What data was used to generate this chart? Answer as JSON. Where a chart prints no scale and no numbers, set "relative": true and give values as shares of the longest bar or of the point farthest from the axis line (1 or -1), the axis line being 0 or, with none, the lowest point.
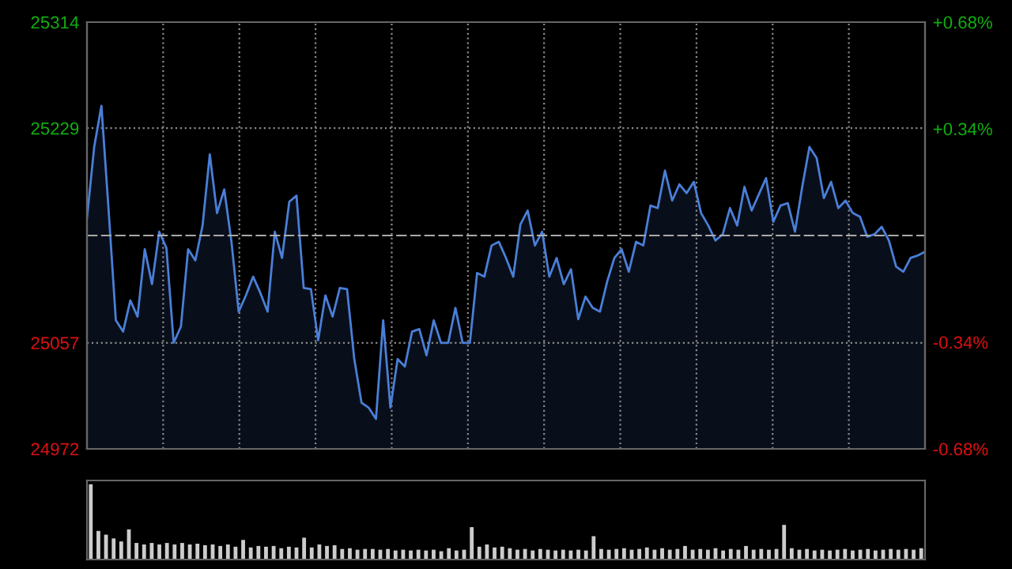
{
  "chart_data": [
    {
      "type": "area",
      "categories": [
        null,
        null,
        null,
        null,
        null,
        null,
        null,
        null,
        null,
        null,
        null,
        null,
        null,
        null,
        null,
        null,
        null,
        null,
        null,
        null,
        null,
        null,
        null,
        null,
        null,
        null,
        null,
        null,
        null,
        null,
        null,
        null,
        null,
        null,
        null,
        null,
        null,
        null,
        null,
        null,
        null,
        null,
        null,
        null,
        null,
        null,
        null,
        null,
        null,
        null,
        null,
        null,
        null,
        null,
        null,
        null,
        null,
        null,
        null,
        null,
        null,
        null,
        null,
        null,
        null,
        null,
        null,
        null,
        null,
        null,
        null,
        null,
        null,
        null,
        null,
        null,
        null,
        null,
        null,
        null,
        null,
        null,
        null,
        null,
        null,
        null,
        null,
        null,
        null,
        null,
        null,
        null,
        null,
        null,
        null,
        null,
        null,
        null,
        null,
        null,
        null,
        null,
        null,
        null,
        null,
        null,
        null,
        null,
        null,
        null,
        null,
        null,
        null,
        null,
        null,
        null,
        null
      ],
      "series": [
        {
          "color": "#4a7fd8",
          "values": [
            25157,
            25214,
            25247,
            25163,
            25075,
            25066,
            25091,
            25078,
            25132,
            25104,
            25146,
            25133,
            25057,
            25070,
            25132,
            25123,
            25151,
            25208,
            25161,
            25180,
            25138,
            25082,
            25095,
            25110,
            25097,
            25082,
            25146,
            25125,
            25170,
            25175,
            25101,
            25100,
            25059,
            25095,
            25078,
            25101,
            25100,
            25044,
            25009,
            25005,
            24996,
            25075,
            25005,
            25044,
            25038,
            25066,
            25068,
            25047,
            25075,
            25057,
            25057,
            25085,
            25057,
            25057,
            25113,
            25110,
            25135,
            25138,
            25125,
            25110,
            25152,
            25163,
            25135,
            25146,
            25110,
            25125,
            25104,
            25116,
            25076,
            25094,
            25085,
            25082,
            25106,
            25125,
            25132,
            25114,
            25138,
            25135,
            25167,
            25165,
            25195,
            25171,
            25184,
            25177,
            25186,
            25161,
            25151,
            25139,
            25144,
            25165,
            25151,
            25182,
            25163,
            25176,
            25189,
            25154,
            25167,
            25169,
            25146,
            25182,
            25214,
            25205,
            25173,
            25186,
            25165,
            25171,
            25161,
            25158,
            25142,
            25144,
            25150,
            25139,
            25118,
            25114,
            25125,
            25127,
            25130
          ]
        }
      ],
      "ylim": [
        24972,
        25314
      ],
      "yticks": [
        24972,
        25057,
        25229,
        25314
      ],
      "y2lim": [
        -0.68,
        0.68
      ],
      "y2ticks": [
        {
          "value": -0.68,
          "label": "-0.68%"
        },
        {
          "value": -0.34,
          "label": "-0.34%"
        },
        {
          "value": 0.34,
          "label": "+0.34%"
        },
        {
          "value": 0.68,
          "label": "+0.68%"
        }
      ],
      "ref_lines": [
        {
          "axis": "y",
          "value": 25143,
          "color": "#aaaaaa",
          "line_style": "dashed"
        }
      ],
      "grid": true,
      "tick_labels": "y"
    },
    {
      "type": "bar",
      "relative": true,
      "tick_labels": false,
      "categories": [
        null,
        null,
        null,
        null,
        null,
        null,
        null,
        null,
        null,
        null,
        null,
        null,
        null,
        null,
        null,
        null,
        null,
        null,
        null,
        null,
        null,
        null,
        null,
        null,
        null,
        null,
        null,
        null,
        null,
        null,
        null,
        null,
        null,
        null,
        null,
        null,
        null,
        null,
        null,
        null,
        null,
        null,
        null,
        null,
        null,
        null,
        null,
        null,
        null,
        null,
        null,
        null,
        null,
        null,
        null,
        null,
        null,
        null,
        null,
        null,
        null,
        null,
        null,
        null,
        null,
        null,
        null,
        null,
        null,
        null,
        null,
        null,
        null,
        null,
        null,
        null,
        null,
        null,
        null,
        null,
        null,
        null,
        null,
        null,
        null,
        null,
        null,
        null,
        null,
        null,
        null,
        null,
        null,
        null,
        null,
        null,
        null,
        null,
        null,
        null,
        null,
        null,
        null,
        null,
        null,
        null,
        null,
        null,
        null,
        null
      ],
      "series": [
        {
          "color": "#cccccc",
          "values": [
            1.0,
            0.38,
            0.33,
            0.28,
            0.24,
            0.4,
            0.22,
            0.2,
            0.22,
            0.2,
            0.22,
            0.2,
            0.22,
            0.2,
            0.21,
            0.19,
            0.2,
            0.18,
            0.2,
            0.17,
            0.26,
            0.16,
            0.18,
            0.17,
            0.18,
            0.15,
            0.17,
            0.16,
            0.29,
            0.16,
            0.2,
            0.18,
            0.19,
            0.14,
            0.15,
            0.13,
            0.14,
            0.14,
            0.13,
            0.14,
            0.12,
            0.13,
            0.12,
            0.13,
            0.12,
            0.13,
            0.11,
            0.15,
            0.12,
            0.13,
            0.43,
            0.17,
            0.2,
            0.16,
            0.17,
            0.15,
            0.13,
            0.14,
            0.12,
            0.14,
            0.13,
            0.12,
            0.13,
            0.12,
            0.13,
            0.12,
            0.31,
            0.14,
            0.13,
            0.14,
            0.15,
            0.13,
            0.14,
            0.16,
            0.13,
            0.15,
            0.13,
            0.14,
            0.18,
            0.13,
            0.14,
            0.13,
            0.15,
            0.12,
            0.14,
            0.13,
            0.18,
            0.13,
            0.14,
            0.13,
            0.14,
            0.46,
            0.15,
            0.13,
            0.14,
            0.12,
            0.13,
            0.12,
            0.13,
            0.14,
            0.12,
            0.13,
            0.14,
            0.12,
            0.13,
            0.14,
            0.13,
            0.14,
            0.13,
            0.15
          ]
        }
      ]
    }
  ]
}
